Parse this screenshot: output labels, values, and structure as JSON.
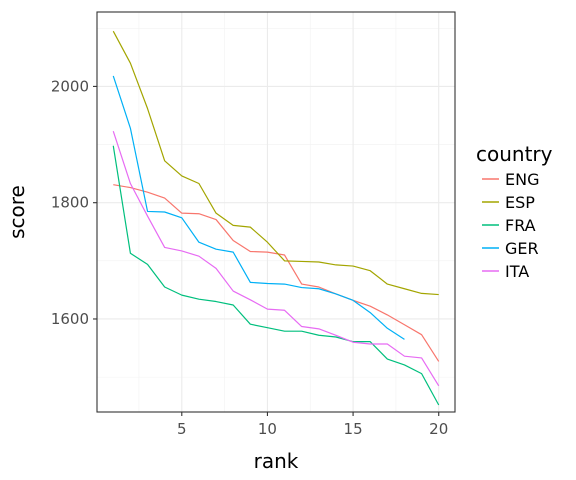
{
  "chart_data": {
    "type": "line",
    "xlabel": "rank",
    "ylabel": "score",
    "xlim": [
      0.05,
      20.95
    ],
    "ylim": [
      1440,
      2128
    ],
    "x_ticks": [
      5,
      10,
      15,
      20
    ],
    "y_ticks": [
      1600,
      1800,
      2000
    ],
    "grid": true,
    "legend": {
      "title": "country",
      "position": "right"
    },
    "series": [
      {
        "name": "ENG",
        "color": "#F8766D",
        "x": [
          1,
          2,
          3,
          4,
          5,
          6,
          7,
          8,
          9,
          10,
          11,
          12,
          13,
          14,
          15,
          16,
          17,
          18,
          19,
          20
        ],
        "y": [
          1831,
          1826,
          1818,
          1808,
          1782,
          1781,
          1771,
          1735,
          1716,
          1715,
          1710,
          1660,
          1655,
          1643,
          1632,
          1622,
          1607,
          1590,
          1573,
          1527
        ]
      },
      {
        "name": "ESP",
        "color": "#A3A500",
        "x": [
          1,
          2,
          3,
          4,
          5,
          6,
          7,
          8,
          9,
          10,
          11,
          12,
          13,
          14,
          15,
          16,
          17,
          18,
          19,
          20
        ],
        "y": [
          2095,
          2040,
          1962,
          1872,
          1846,
          1833,
          1782,
          1761,
          1758,
          1732,
          1700,
          1699,
          1698,
          1693,
          1691,
          1683,
          1660,
          1652,
          1644,
          1642
        ]
      },
      {
        "name": "FRA",
        "color": "#00BF7D",
        "x": [
          1,
          2,
          3,
          4,
          5,
          6,
          7,
          8,
          9,
          10,
          11,
          12,
          13,
          14,
          15,
          16,
          17,
          18,
          19,
          20
        ],
        "y": [
          1898,
          1713,
          1694,
          1655,
          1641,
          1634,
          1630,
          1624,
          1591,
          1585,
          1579,
          1579,
          1572,
          1569,
          1561,
          1561,
          1531,
          1521,
          1506,
          1452
        ]
      },
      {
        "name": "GER",
        "color": "#00B0F6",
        "x": [
          1,
          2,
          3,
          4,
          5,
          6,
          7,
          8,
          9,
          10,
          11,
          12,
          13,
          14,
          15,
          16,
          17,
          18
        ],
        "y": [
          2018,
          1928,
          1785,
          1784,
          1774,
          1732,
          1720,
          1715,
          1663,
          1661,
          1660,
          1654,
          1652,
          1643,
          1632,
          1611,
          1584,
          1565
        ]
      },
      {
        "name": "ITA",
        "color": "#E76BF3",
        "x": [
          1,
          2,
          3,
          4,
          5,
          6,
          7,
          8,
          9,
          10,
          11,
          12,
          13,
          14,
          15,
          16,
          17,
          18,
          19,
          20
        ],
        "y": [
          1923,
          1833,
          1777,
          1723,
          1717,
          1708,
          1687,
          1648,
          1633,
          1617,
          1615,
          1587,
          1583,
          1572,
          1560,
          1557,
          1557,
          1536,
          1533,
          1485
        ]
      }
    ]
  }
}
